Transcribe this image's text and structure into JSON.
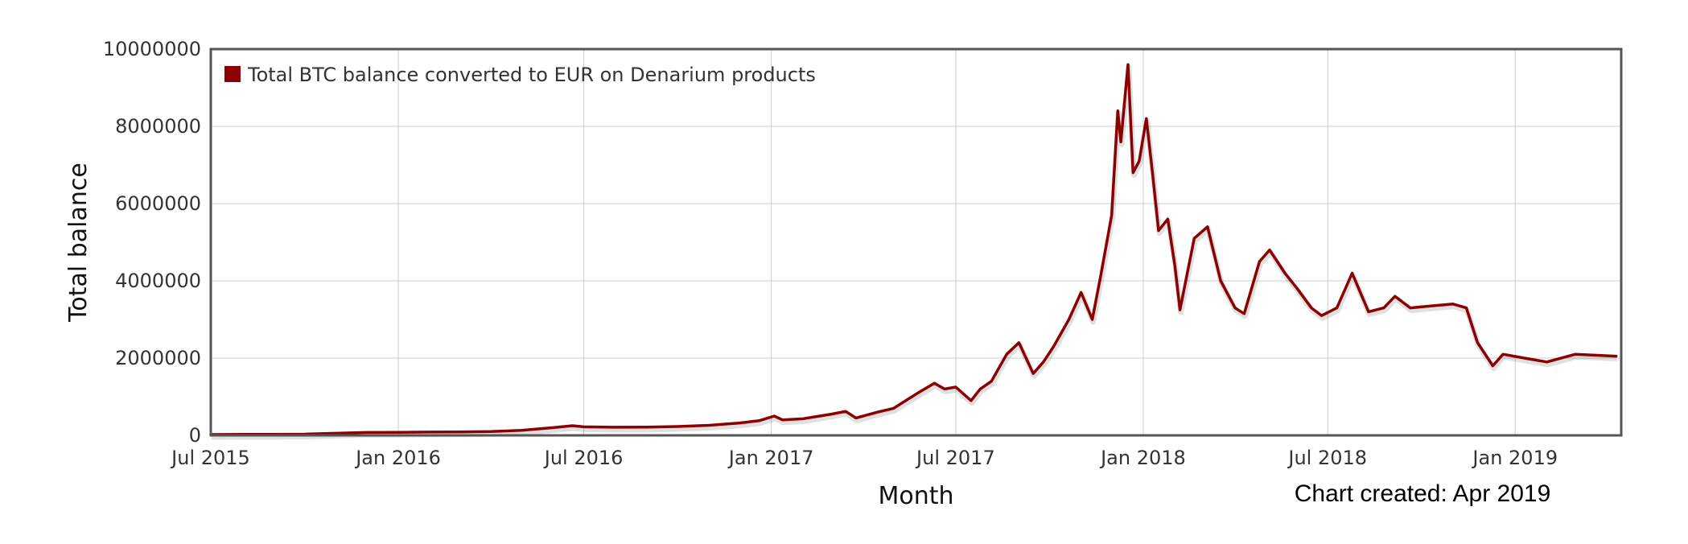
{
  "chart_data": {
    "type": "line",
    "title": "",
    "xlabel": "Month",
    "ylabel": "Total balance",
    "ylim": [
      0,
      10000000
    ],
    "xlim": [
      "2015-07-01",
      "2019-04-15"
    ],
    "grid": true,
    "legend_placement": "top-left",
    "x_tick_labels": [
      "Jul 2015",
      "Jan 2016",
      "Jul 2016",
      "Jan 2017",
      "Jul 2017",
      "Jan 2018",
      "Jul 2018",
      "Jan 2019"
    ],
    "y_tick_labels": [
      "0",
      "2000000",
      "4000000",
      "6000000",
      "8000000",
      "10000000"
    ],
    "annotation": "Chart created: Apr 2019",
    "series": [
      {
        "name": "Total BTC balance converted to EUR on Denarium products",
        "color": "#8b0000",
        "points": [
          [
            "2015-07-01",
            20000
          ],
          [
            "2015-08-01",
            25000
          ],
          [
            "2015-09-01",
            28000
          ],
          [
            "2015-10-01",
            32000
          ],
          [
            "2015-11-01",
            55000
          ],
          [
            "2015-12-01",
            75000
          ],
          [
            "2016-01-01",
            80000
          ],
          [
            "2016-02-01",
            85000
          ],
          [
            "2016-03-01",
            90000
          ],
          [
            "2016-04-01",
            100000
          ],
          [
            "2016-05-01",
            130000
          ],
          [
            "2016-06-01",
            200000
          ],
          [
            "2016-06-20",
            250000
          ],
          [
            "2016-07-01",
            220000
          ],
          [
            "2016-08-01",
            210000
          ],
          [
            "2016-09-01",
            215000
          ],
          [
            "2016-10-01",
            230000
          ],
          [
            "2016-11-01",
            260000
          ],
          [
            "2016-12-01",
            320000
          ],
          [
            "2016-12-20",
            380000
          ],
          [
            "2017-01-04",
            500000
          ],
          [
            "2017-01-12",
            400000
          ],
          [
            "2017-02-01",
            430000
          ],
          [
            "2017-03-01",
            550000
          ],
          [
            "2017-03-15",
            620000
          ],
          [
            "2017-03-25",
            450000
          ],
          [
            "2017-04-15",
            600000
          ],
          [
            "2017-05-01",
            700000
          ],
          [
            "2017-05-25",
            1100000
          ],
          [
            "2017-06-10",
            1350000
          ],
          [
            "2017-06-20",
            1200000
          ],
          [
            "2017-07-01",
            1250000
          ],
          [
            "2017-07-16",
            900000
          ],
          [
            "2017-07-25",
            1200000
          ],
          [
            "2017-08-05",
            1400000
          ],
          [
            "2017-08-20",
            2100000
          ],
          [
            "2017-09-01",
            2400000
          ],
          [
            "2017-09-15",
            1600000
          ],
          [
            "2017-09-25",
            1900000
          ],
          [
            "2017-10-05",
            2300000
          ],
          [
            "2017-10-20",
            3000000
          ],
          [
            "2017-11-01",
            3700000
          ],
          [
            "2017-11-12",
            3000000
          ],
          [
            "2017-11-20",
            4100000
          ],
          [
            "2017-12-01",
            5700000
          ],
          [
            "2017-12-07",
            8400000
          ],
          [
            "2017-12-10",
            7600000
          ],
          [
            "2017-12-17",
            9600000
          ],
          [
            "2017-12-22",
            6800000
          ],
          [
            "2017-12-28",
            7100000
          ],
          [
            "2018-01-04",
            8200000
          ],
          [
            "2018-01-10",
            6800000
          ],
          [
            "2018-01-16",
            5300000
          ],
          [
            "2018-01-25",
            5600000
          ],
          [
            "2018-02-01",
            4400000
          ],
          [
            "2018-02-06",
            3250000
          ],
          [
            "2018-02-20",
            5100000
          ],
          [
            "2018-03-05",
            5400000
          ],
          [
            "2018-03-18",
            4000000
          ],
          [
            "2018-04-01",
            3300000
          ],
          [
            "2018-04-10",
            3150000
          ],
          [
            "2018-04-25",
            4500000
          ],
          [
            "2018-05-05",
            4800000
          ],
          [
            "2018-05-20",
            4200000
          ],
          [
            "2018-06-01",
            3800000
          ],
          [
            "2018-06-15",
            3300000
          ],
          [
            "2018-06-25",
            3100000
          ],
          [
            "2018-07-10",
            3300000
          ],
          [
            "2018-07-25",
            4200000
          ],
          [
            "2018-08-10",
            3200000
          ],
          [
            "2018-08-25",
            3300000
          ],
          [
            "2018-09-05",
            3600000
          ],
          [
            "2018-09-20",
            3300000
          ],
          [
            "2018-10-10",
            3350000
          ],
          [
            "2018-11-01",
            3400000
          ],
          [
            "2018-11-14",
            3300000
          ],
          [
            "2018-11-25",
            2400000
          ],
          [
            "2018-12-10",
            1800000
          ],
          [
            "2018-12-20",
            2100000
          ],
          [
            "2019-01-10",
            2000000
          ],
          [
            "2019-02-01",
            1900000
          ],
          [
            "2019-03-01",
            2100000
          ],
          [
            "2019-04-10",
            2050000
          ]
        ]
      }
    ]
  }
}
